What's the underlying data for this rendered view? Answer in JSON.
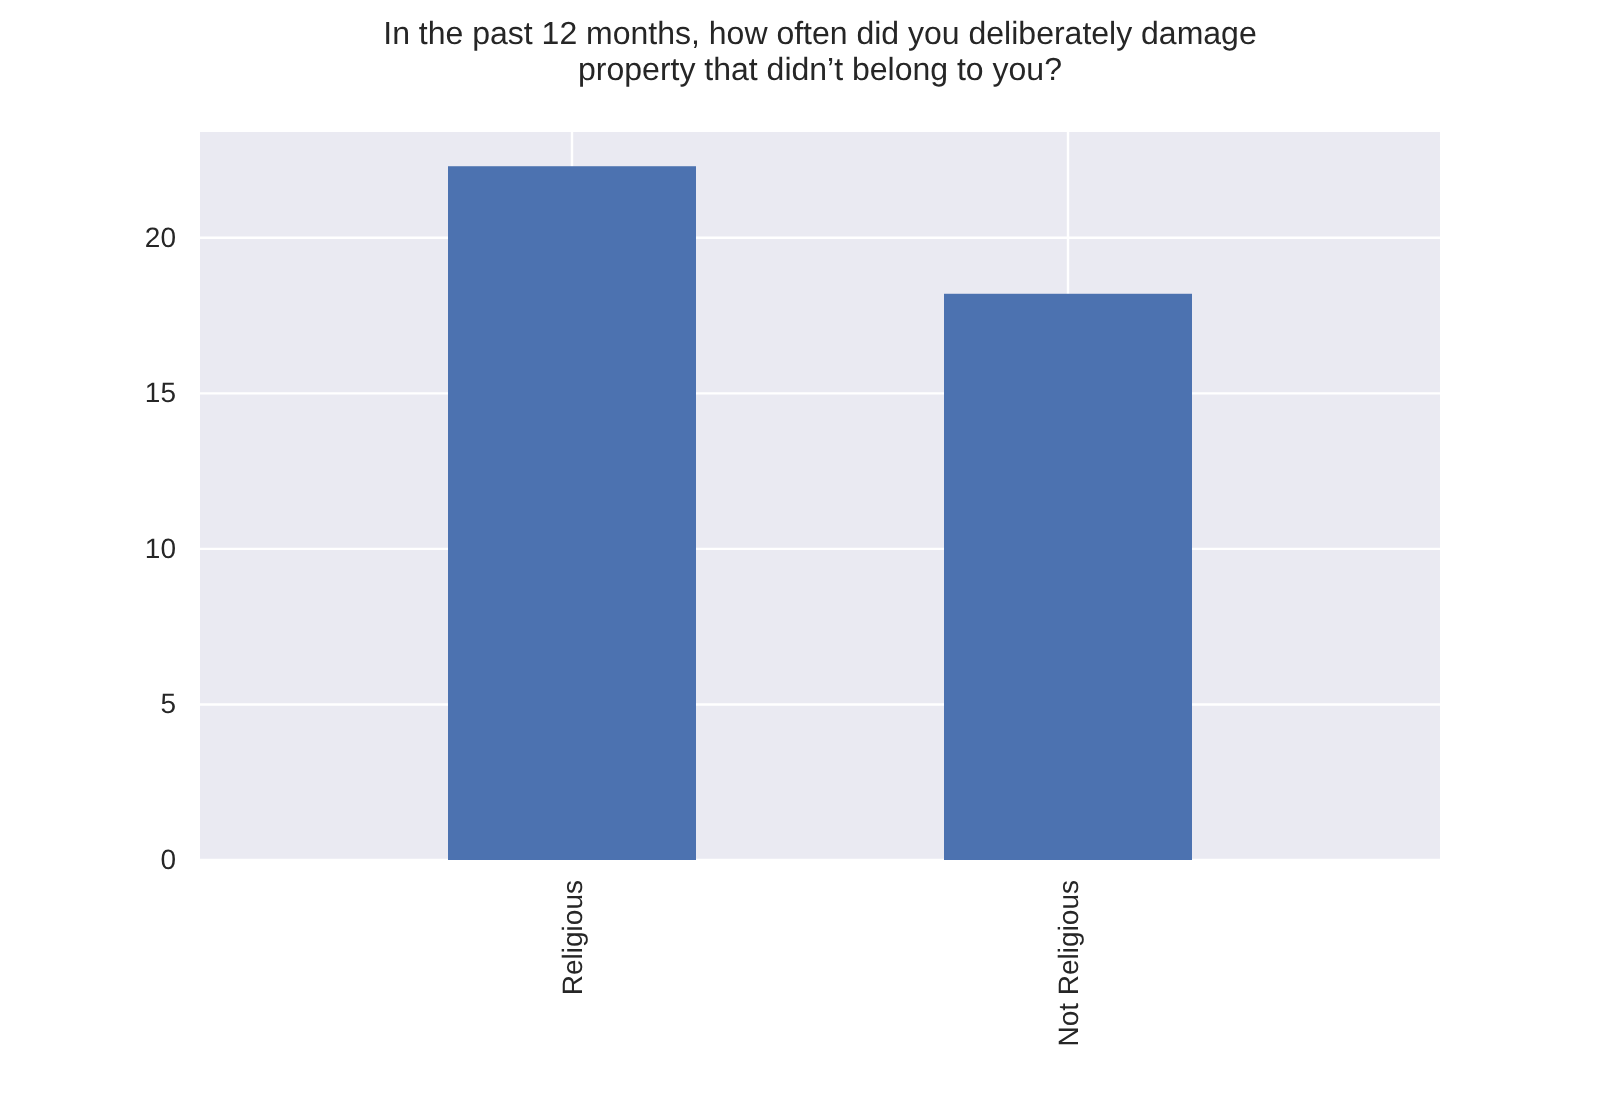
{
  "chart_data": {
    "type": "bar",
    "title": "In the past 12 months, how often did you deliberately damage\nproperty that didn’t belong to you?",
    "categories": [
      "Religious",
      "Not Religious"
    ],
    "values": [
      22.3,
      18.2
    ],
    "color": "#4c72b0",
    "ylim": [
      0,
      23.4
    ],
    "yticks": [
      0,
      5,
      10,
      15,
      20
    ],
    "grid": true
  }
}
